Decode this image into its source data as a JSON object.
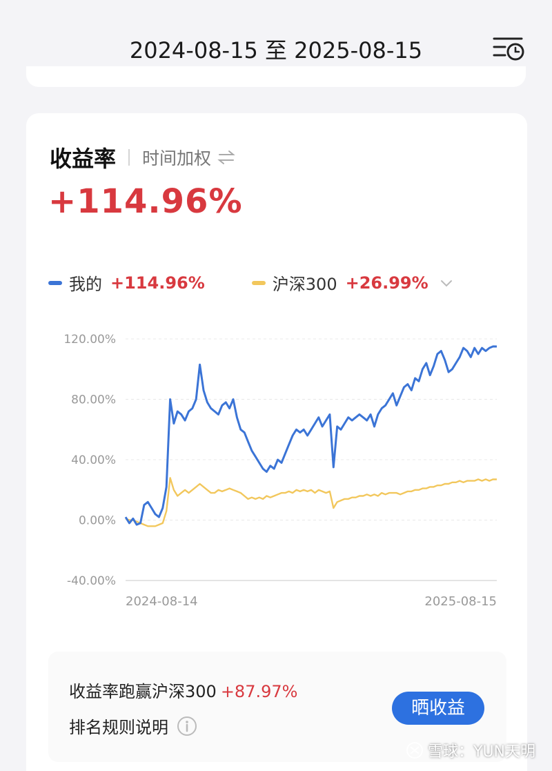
{
  "header": {
    "date_start": "2024-08-15",
    "date_sep": "至",
    "date_end": "2025-08-15",
    "filter_icon": "calendar-filter-icon"
  },
  "card": {
    "title": "收益率",
    "weight_mode": "时间加权",
    "swap_icon": "swap-arrows-icon",
    "total_return": "+114.96%"
  },
  "legend": {
    "mine_label": "我的",
    "mine_value": "+114.96%",
    "index_label": "沪深300",
    "index_value": "+26.99%",
    "mine_color": "#3b74d6",
    "index_color": "#f2c75c"
  },
  "chart_data": {
    "type": "line",
    "title": "",
    "xlabel": "",
    "ylabel": "",
    "ylim": [
      -40,
      120
    ],
    "y_ticks": [
      "120.00%",
      "80.00%",
      "40.00%",
      "0.00%",
      "-40.00%"
    ],
    "y_tick_values": [
      120,
      80,
      40,
      0,
      -40
    ],
    "x_tick_labels": [
      "2024-08-14",
      "2025-08-15"
    ],
    "grid": true,
    "series": [
      {
        "name": "我的",
        "color": "#3b74d6",
        "x": [
          0,
          1,
          2,
          3,
          4,
          5,
          6,
          7,
          8,
          9,
          10,
          11,
          12,
          13,
          14,
          15,
          16,
          17,
          18,
          19,
          20,
          21,
          22,
          23,
          24,
          25,
          26,
          27,
          28,
          29,
          30,
          31,
          32,
          33,
          34,
          35,
          36,
          37,
          38,
          39,
          40,
          41,
          42,
          43,
          44,
          45,
          46,
          47,
          48,
          49,
          50,
          51,
          52,
          53,
          54,
          55,
          56,
          57,
          58,
          59,
          60,
          61,
          62,
          63,
          64,
          65,
          66,
          67,
          68,
          69,
          70,
          71,
          72,
          73,
          74,
          75,
          76,
          77,
          78,
          79,
          80,
          81,
          82,
          83,
          84,
          85,
          86,
          87,
          88,
          89,
          90,
          91,
          92,
          93,
          94,
          95,
          96,
          97,
          98,
          99,
          100
        ],
        "y": [
          2,
          -2,
          1,
          -3,
          -2,
          10,
          12,
          8,
          4,
          2,
          8,
          22,
          80,
          64,
          72,
          70,
          66,
          72,
          74,
          80,
          103,
          86,
          78,
          74,
          72,
          70,
          76,
          78,
          74,
          80,
          68,
          60,
          58,
          52,
          46,
          42,
          38,
          34,
          32,
          36,
          34,
          40,
          38,
          44,
          50,
          56,
          60,
          58,
          60,
          56,
          60,
          64,
          68,
          62,
          66,
          70,
          35,
          62,
          60,
          64,
          68,
          66,
          68,
          70,
          68,
          66,
          70,
          62,
          70,
          74,
          76,
          80,
          84,
          76,
          82,
          88,
          90,
          86,
          94,
          92,
          100,
          104,
          96,
          102,
          110,
          112,
          106,
          98,
          100,
          104,
          108,
          114,
          112,
          108,
          114,
          110,
          114,
          112,
          114,
          115,
          114.96
        ]
      },
      {
        "name": "沪深300",
        "color": "#f2c75c",
        "x": [
          0,
          1,
          2,
          3,
          4,
          5,
          6,
          7,
          8,
          9,
          10,
          11,
          12,
          13,
          14,
          15,
          16,
          17,
          18,
          19,
          20,
          21,
          22,
          23,
          24,
          25,
          26,
          27,
          28,
          29,
          30,
          31,
          32,
          33,
          34,
          35,
          36,
          37,
          38,
          39,
          40,
          41,
          42,
          43,
          44,
          45,
          46,
          47,
          48,
          49,
          50,
          51,
          52,
          53,
          54,
          55,
          56,
          57,
          58,
          59,
          60,
          61,
          62,
          63,
          64,
          65,
          66,
          67,
          68,
          69,
          70,
          71,
          72,
          73,
          74,
          75,
          76,
          77,
          78,
          79,
          80,
          81,
          82,
          83,
          84,
          85,
          86,
          87,
          88,
          89,
          90,
          91,
          92,
          93,
          94,
          95,
          96,
          97,
          98,
          99,
          100
        ],
        "y": [
          1,
          0,
          0,
          -1,
          -2,
          -3,
          -4,
          -4,
          -4,
          -3,
          -2,
          6,
          28,
          20,
          16,
          18,
          20,
          18,
          20,
          22,
          24,
          22,
          20,
          18,
          18,
          20,
          19,
          20,
          21,
          20,
          19,
          18,
          16,
          14,
          15,
          14,
          15,
          14,
          16,
          15,
          16,
          17,
          18,
          18,
          19,
          18,
          20,
          19,
          20,
          19,
          20,
          18,
          20,
          19,
          18,
          19,
          8,
          12,
          13,
          14,
          14,
          15,
          15,
          16,
          16,
          17,
          16,
          17,
          16,
          18,
          17,
          18,
          18,
          18,
          17,
          18,
          19,
          19,
          20,
          20,
          21,
          21,
          22,
          22,
          23,
          23,
          24,
          24,
          25,
          25,
          26,
          25,
          26,
          26,
          26,
          27,
          26,
          27,
          26,
          27,
          26.99
        ]
      }
    ]
  },
  "summary": {
    "beat_label": "收益率跑赢沪深300",
    "beat_value": "+87.97%",
    "rules_label": "排名规则说明",
    "info_icon": "info-icon",
    "share_button": "晒收益"
  },
  "watermark": {
    "text": "雪球：YUN天明",
    "logo_icon": "snowball-logo-icon"
  }
}
